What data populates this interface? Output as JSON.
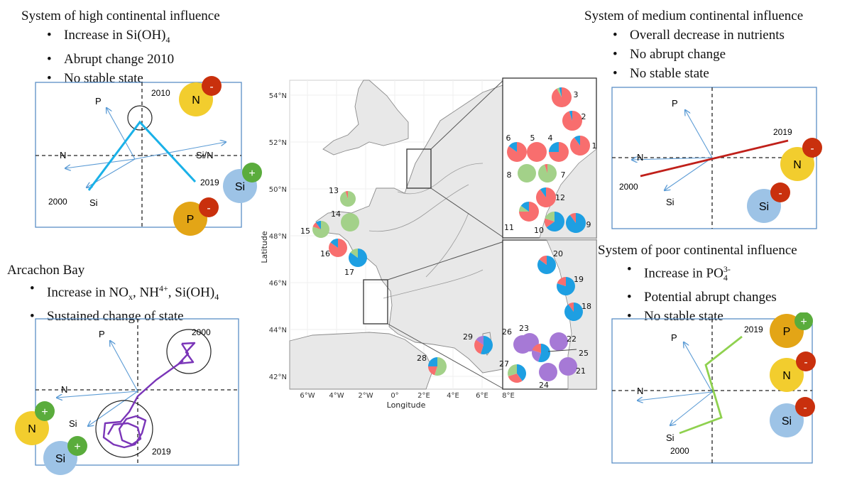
{
  "panels": {
    "high": {
      "title": "System of high continental influence",
      "bullets": [
        {
          "pre": "Increase in Si(OH)",
          "sub": "4",
          "post": ""
        },
        {
          "pre": "Abrupt change 2010",
          "sub": "",
          "post": ""
        },
        {
          "pre": "No stable state",
          "sub": "",
          "post": ""
        }
      ],
      "labels": {
        "p": "P",
        "n": "N",
        "sin": "Si/N",
        "si": "Si",
        "y1": "2000",
        "y2": "2010",
        "y3": "2019"
      },
      "circles": [
        {
          "label": "N",
          "sign": "-"
        },
        {
          "label": "Si",
          "sign": "+"
        },
        {
          "label": "P",
          "sign": "-"
        }
      ]
    },
    "medium": {
      "title": "System of medium continental influence",
      "bullets": [
        {
          "pre": "Overall decrease in nutrients",
          "sub": "",
          "post": ""
        },
        {
          "pre": "No abrupt change",
          "sub": "",
          "post": ""
        },
        {
          "pre": "No stable state",
          "sub": "",
          "post": ""
        }
      ],
      "labels": {
        "p": "P",
        "n": "N",
        "si": "Si",
        "y1": "2000",
        "y2": "2019"
      },
      "circles": [
        {
          "label": "N",
          "sign": "-"
        },
        {
          "label": "Si",
          "sign": "-"
        }
      ]
    },
    "arcachon": {
      "title": "Arcachon Bay",
      "bullet1": {
        "pre": "Increase in NO",
        "sub1": "x",
        "mid1": ", NH",
        "sup": "4+",
        "mid2": ", Si(OH)",
        "sub2": "4"
      },
      "bullet2": "Sustained change of state",
      "labels": {
        "p": "P",
        "n": "N",
        "si": "Si",
        "y1": "2000",
        "y2": "2019"
      },
      "circles": [
        {
          "label": "N",
          "sign": "+"
        },
        {
          "label": "Si",
          "sign": "+"
        }
      ]
    },
    "poor": {
      "title": "System of poor continental influence",
      "bullet1": {
        "pre": "Increase in PO",
        "sub": "4",
        "sup": "3-"
      },
      "bullet2": "Potential abrupt changes",
      "bullet3": "No stable state",
      "labels": {
        "p": "P",
        "n": "N",
        "si": "Si",
        "y1": "2000",
        "y2": "2019"
      },
      "circles": [
        {
          "label": "P",
          "sign": "+"
        },
        {
          "label": "N",
          "sign": "-"
        },
        {
          "label": "Si",
          "sign": "-"
        }
      ]
    }
  },
  "map": {
    "xlabel": "Longitude",
    "ylabel": "Latitude",
    "lat_ticks": [
      "54°N",
      "52°N",
      "50°N",
      "48°N",
      "46°N",
      "44°N",
      "42°N"
    ],
    "lon_ticks": [
      "6°W",
      "4°W",
      "2°W",
      "0°",
      "2°E",
      "4°E",
      "6°E",
      "8°E"
    ],
    "stations": [
      "1",
      "2",
      "3",
      "4",
      "5",
      "6",
      "7",
      "8",
      "9",
      "10",
      "11",
      "12",
      "13",
      "14",
      "15",
      "16",
      "17",
      "18",
      "19",
      "20",
      "21",
      "22",
      "23",
      "24",
      "25",
      "26",
      "27",
      "28",
      "29"
    ]
  },
  "colors": {
    "panel_border": "#5b8fc7",
    "arrow": "#5b9bd5",
    "high_line": "#1ab1e8",
    "medium_line": "#c0201a",
    "arcachon_line": "#7a35b8",
    "poor_line": "#8fd14f",
    "circle_N": "#f2cd2e",
    "circle_Si": "#9dc3e6",
    "circle_P": "#e3a516",
    "sign_minus": "#c9300d",
    "sign_plus": "#5aac3c",
    "pie_red": "#f86e6e",
    "pie_blue": "#1e9fe2",
    "pie_green": "#a3d189",
    "pie_purple": "#a679d6",
    "land": "#e8e8e8"
  }
}
